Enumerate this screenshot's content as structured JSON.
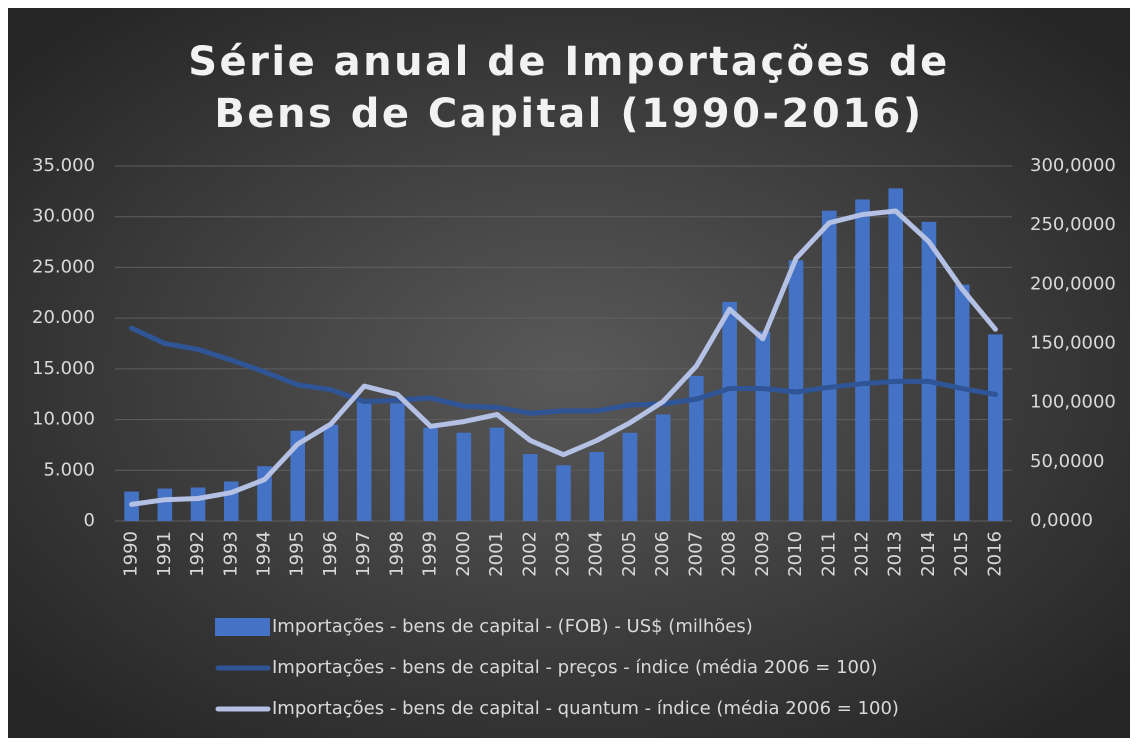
{
  "chart_data": {
    "type": "combo",
    "title": "Série anual de Importações de Bens de Capital (1990-2016)",
    "categories": [
      "1990",
      "1991",
      "1992",
      "1993",
      "1994",
      "1995",
      "1996",
      "1997",
      "1998",
      "1999",
      "2000",
      "2001",
      "2002",
      "2003",
      "2004",
      "2005",
      "2006",
      "2007",
      "2008",
      "2009",
      "2010",
      "2011",
      "2012",
      "2013",
      "2014",
      "2015",
      "2016"
    ],
    "series": [
      {
        "name": "Importações - bens de capital - (FOB) - US$ (milhões)",
        "type": "bar",
        "color": "#4472c4",
        "values": [
          2900,
          3200,
          3300,
          3900,
          5400,
          8900,
          9500,
          11800,
          11600,
          9200,
          8700,
          9200,
          6600,
          5500,
          6800,
          8700,
          10500,
          14300,
          21600,
          18700,
          25700,
          30600,
          31700,
          32800,
          29500,
          23300,
          18400
        ]
      },
      {
        "name": "Importações - bens de capital - preços - índice (média 2006 = 100)",
        "type": "line",
        "axis": "y2",
        "color": "#2f5597",
        "values": [
          163,
          150,
          145,
          136,
          126,
          115,
          111,
          101,
          102,
          104,
          97,
          96,
          91,
          93,
          93,
          98,
          99,
          103,
          112,
          112,
          109,
          113,
          116,
          118,
          118,
          112,
          107
        ]
      },
      {
        "name": "Importações - bens de capital - quantum - índice (média 2006 = 100)",
        "type": "line",
        "axis": "y2",
        "color": "#b4c0e4",
        "values": [
          14,
          18,
          19,
          24,
          35,
          65,
          82,
          114,
          107,
          80,
          84,
          90,
          68,
          56,
          68,
          83,
          101,
          131,
          179,
          154,
          222,
          252,
          259,
          262,
          236,
          196,
          162
        ]
      }
    ],
    "ylim": [
      0,
      35000
    ],
    "yticks": [
      0,
      {
        "value": 5000,
        "label": "5.000"
      },
      {
        "value": 10000,
        "label": "10.000"
      },
      {
        "value": 15000,
        "label": "15.000"
      },
      {
        "value": 20000,
        "label": "20.000"
      },
      {
        "value": 25000,
        "label": "25.000"
      },
      {
        "value": 30000,
        "label": "30.000"
      },
      {
        "value": 35000,
        "label": "35.000"
      }
    ],
    "y2lim": [
      0,
      300
    ],
    "y2ticks": [
      {
        "value": 0,
        "label": "0,0000"
      },
      {
        "value": 50,
        "label": "50,0000"
      },
      {
        "value": 100,
        "label": "100,0000"
      },
      {
        "value": 150,
        "label": "150,0000"
      },
      {
        "value": 200,
        "label": "200,0000"
      },
      {
        "value": 250,
        "label": "250,0000"
      },
      {
        "value": 300,
        "label": "300,0000"
      }
    ],
    "grid": true
  }
}
